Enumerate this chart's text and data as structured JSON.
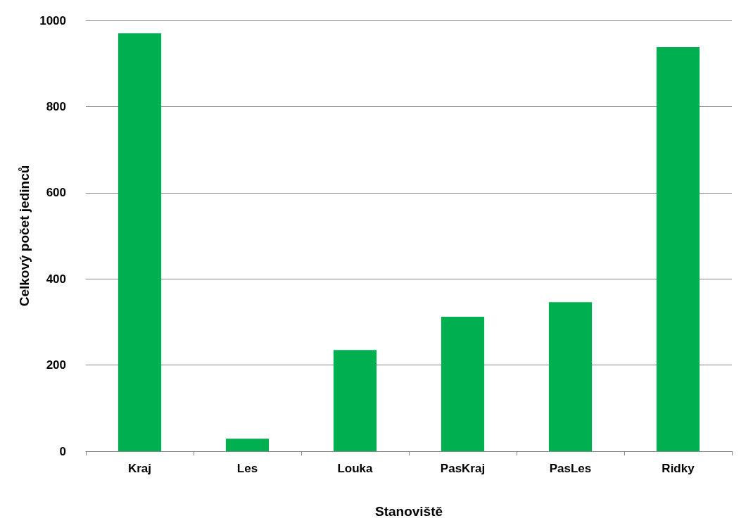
{
  "chart_data": {
    "type": "bar",
    "xlabel": "Stanoviště",
    "ylabel": "Celkový počet jedinců",
    "categories": [
      "Kraj",
      "Les",
      "Louka",
      "PasKraj",
      "PasLes",
      "Ridky"
    ],
    "values": [
      970,
      29,
      235,
      312,
      346,
      938
    ],
    "color": "#00b050",
    "ylim": [
      0,
      1000
    ],
    "yticks": [
      0,
      200,
      400,
      600,
      800,
      1000
    ],
    "grid": "y"
  }
}
